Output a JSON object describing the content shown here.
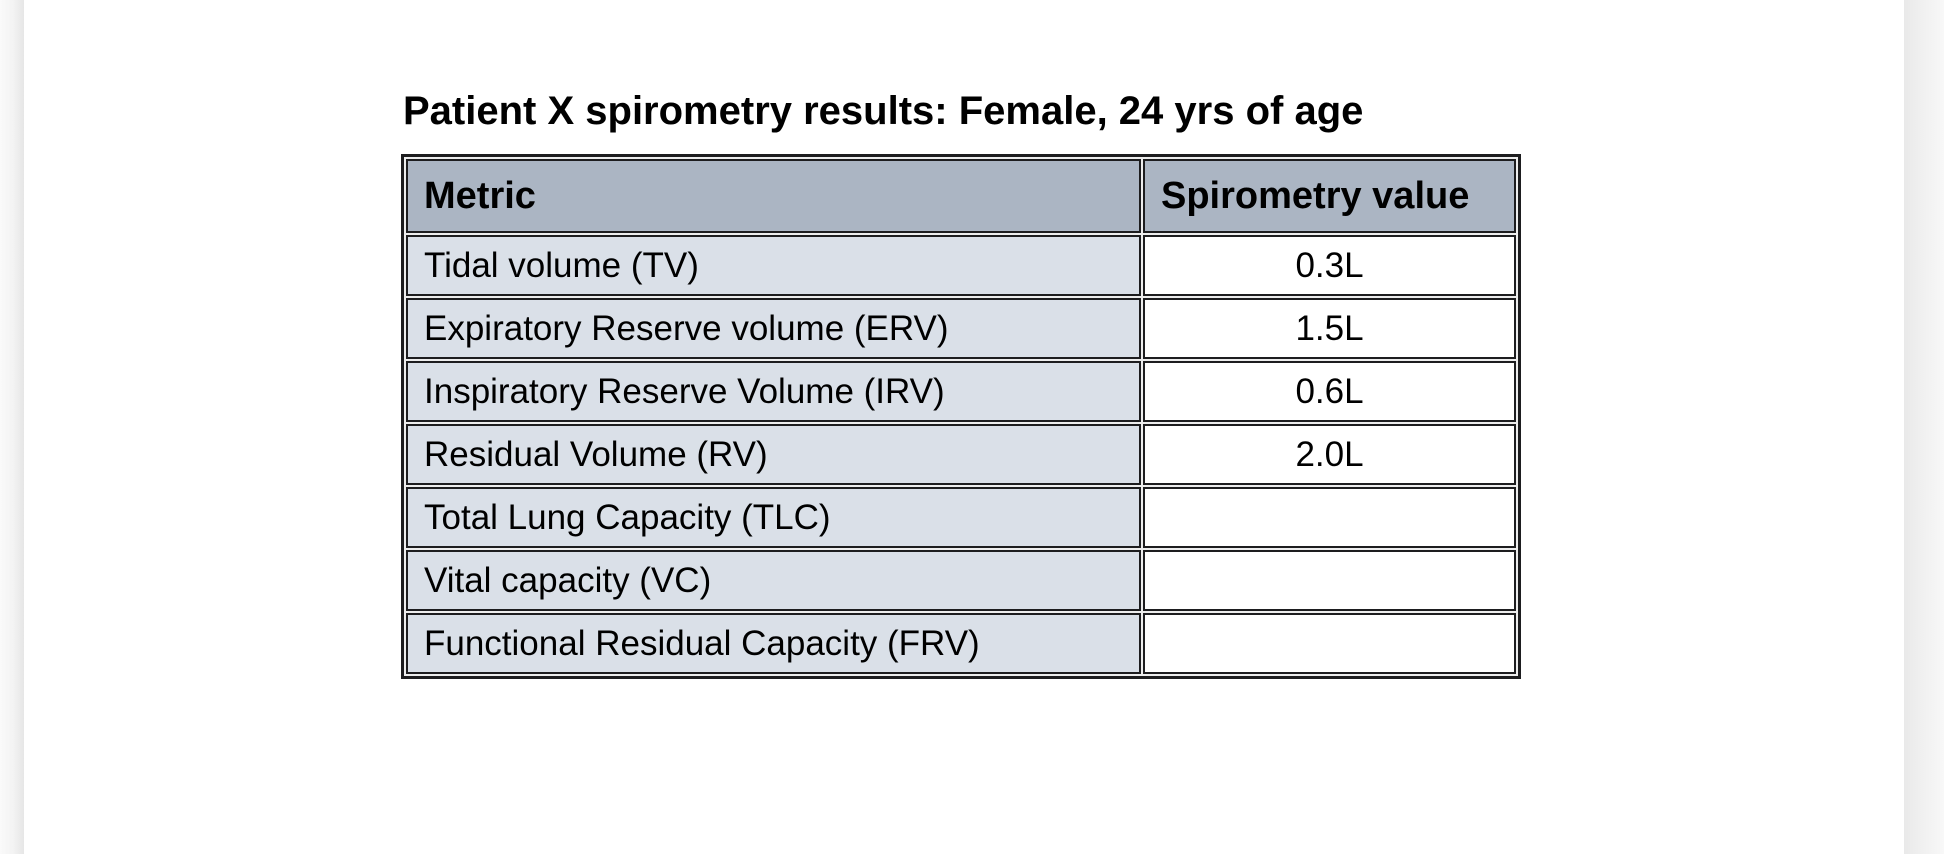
{
  "document": {
    "title": "Patient X spirometry results: Female, 24 yrs of age"
  },
  "table": {
    "columns": [
      "Metric",
      "Spirometry value"
    ],
    "rows": [
      {
        "metric": "Tidal volume (TV)",
        "value": "0.3L"
      },
      {
        "metric": "Expiratory Reserve volume (ERV)",
        "value": "1.5L"
      },
      {
        "metric": "Inspiratory Reserve Volume (IRV)",
        "value": "0.6L"
      },
      {
        "metric": "Residual Volume (RV)",
        "value": "2.0L"
      },
      {
        "metric": "Total Lung Capacity (TLC)",
        "value": ""
      },
      {
        "metric": "Vital capacity (VC)",
        "value": ""
      },
      {
        "metric": "Functional Residual Capacity (FRV)",
        "value": ""
      }
    ],
    "colors": {
      "header_bg": "#abb5c3",
      "metric_cell_bg": "#dae0e8",
      "value_cell_bg": "#ffffff",
      "border": "#1d1d1f"
    }
  }
}
